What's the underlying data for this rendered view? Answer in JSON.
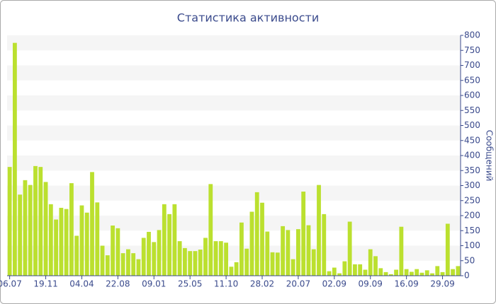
{
  "chart_data": {
    "type": "bar",
    "title": "Статистика активности",
    "y_label": "Сообщений",
    "categories": [
      "06.07",
      null,
      null,
      null,
      null,
      null,
      null,
      "19.11",
      null,
      null,
      null,
      null,
      null,
      null,
      "04.04",
      null,
      null,
      null,
      null,
      null,
      null,
      "22.08",
      null,
      null,
      null,
      null,
      null,
      null,
      "09.01",
      null,
      null,
      null,
      null,
      null,
      null,
      "25.05",
      null,
      null,
      null,
      null,
      null,
      null,
      "11.10",
      null,
      null,
      null,
      null,
      null,
      null,
      "28.02",
      null,
      null,
      null,
      null,
      null,
      null,
      "20.07",
      null,
      null,
      null,
      null,
      null,
      null,
      "02.09",
      null,
      null,
      null,
      null,
      null,
      null,
      "09.09",
      null,
      null,
      null,
      null,
      null,
      null,
      "16.09",
      null,
      null,
      null,
      null,
      null,
      null,
      "29.09",
      null,
      null,
      null
    ],
    "values": [
      362,
      775,
      270,
      318,
      302,
      365,
      362,
      312,
      238,
      187,
      226,
      222,
      308,
      133,
      234,
      210,
      345,
      244,
      100,
      68,
      167,
      158,
      75,
      88,
      75,
      55,
      126,
      146,
      112,
      152,
      238,
      205,
      238,
      115,
      92,
      82,
      82,
      87,
      126,
      305,
      115,
      115,
      110,
      30,
      45,
      177,
      90,
      213,
      278,
      243,
      147,
      78,
      77,
      165,
      152,
      55,
      155,
      280,
      168,
      88,
      302,
      205,
      15,
      27,
      8,
      48,
      180,
      38,
      38,
      20,
      88,
      65,
      25,
      12,
      5,
      20,
      163,
      22,
      13,
      22,
      10,
      18,
      8,
      32,
      12,
      173,
      22,
      32
    ],
    "color": "#bbe02f",
    "ylim": [
      0,
      800
    ],
    "yticks": [
      0,
      50,
      100,
      150,
      200,
      250,
      300,
      350,
      400,
      450,
      500,
      550,
      600,
      650,
      700,
      750,
      800
    ],
    "grid": "bands"
  }
}
